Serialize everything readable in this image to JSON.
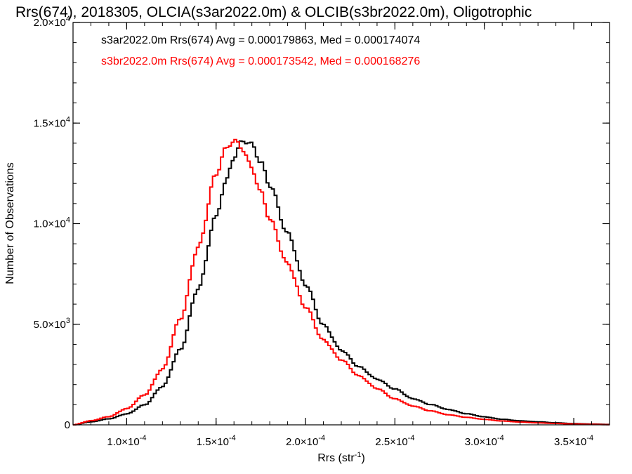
{
  "colors": {
    "series_a": "#000000",
    "series_b": "#ff0000",
    "axis": "#000000",
    "background": "#ffffff"
  },
  "chart_data": {
    "type": "histogram",
    "title": "Rrs(674), 2018305, OLCIA(s3ar2022.0m) & OLCIB(s3br2022.0m), Oligotrophic",
    "xlabel": "Rrs (str⁻¹)",
    "ylabel": "Number of Observations",
    "xlim": [
      7e-05,
      0.00037
    ],
    "ylim": [
      0,
      20000
    ],
    "x_scale": "linear",
    "grid": false,
    "legend_placement": "top-left",
    "x_ticks": [
      {
        "value": 0.0001,
        "label": "1.0×10⁻⁴"
      },
      {
        "value": 0.00015,
        "label": "1.5×10⁻⁴"
      },
      {
        "value": 0.0002,
        "label": "2.0×10⁻⁴"
      },
      {
        "value": 0.00025,
        "label": "2.5×10⁻⁴"
      },
      {
        "value": 0.0003,
        "label": "3.0×10⁻⁴"
      },
      {
        "value": 0.00035,
        "label": "3.5×10⁻⁴"
      }
    ],
    "y_ticks": [
      {
        "value": 0,
        "label": "0"
      },
      {
        "value": 5000,
        "label": "5.0×10³"
      },
      {
        "value": 10000,
        "label": "1.0×10⁴"
      },
      {
        "value": 15000,
        "label": "1.5×10⁴"
      },
      {
        "value": 20000,
        "label": "2.0×10⁴"
      }
    ],
    "series": [
      {
        "name": "s3ar2022.0m Rrs(674) Avg = 0.000179863, Med = 0.000174074",
        "color": "#000000",
        "x": [
          7e-05,
          8e-05,
          9e-05,
          0.0001,
          0.00011,
          0.00012,
          0.00013,
          0.00014,
          0.00015,
          0.000155,
          0.00016,
          0.000165,
          0.00017,
          0.000175,
          0.00018,
          0.00019,
          0.0002,
          0.00021,
          0.00022,
          0.00023,
          0.00024,
          0.00025,
          0.00026,
          0.00027,
          0.00028,
          0.00029,
          0.0003,
          0.00031,
          0.00032,
          0.00033,
          0.00034,
          0.00035,
          0.00036,
          0.00037
        ],
        "y": [
          0,
          150,
          300,
          550,
          1000,
          1900,
          3700,
          6700,
          10300,
          12000,
          13400,
          14300,
          14100,
          13200,
          12000,
          9500,
          6900,
          4900,
          3700,
          2900,
          2300,
          1800,
          1300,
          1000,
          750,
          550,
          400,
          280,
          200,
          150,
          100,
          60,
          40,
          20
        ]
      },
      {
        "name": "s3br2022.0m Rrs(674) Avg = 0.000173542, Med = 0.000168276",
        "color": "#ff0000",
        "x": [
          7e-05,
          8e-05,
          9e-05,
          0.0001,
          0.00011,
          0.00012,
          0.00013,
          0.00014,
          0.00015,
          0.000155,
          0.00016,
          0.000165,
          0.00017,
          0.000175,
          0.00018,
          0.00019,
          0.0002,
          0.00021,
          0.00022,
          0.00023,
          0.00024,
          0.00025,
          0.00026,
          0.00027,
          0.00028,
          0.00029,
          0.0003,
          0.00031,
          0.00032,
          0.00033,
          0.00034,
          0.00035,
          0.00036,
          0.00037
        ],
        "y": [
          0,
          200,
          400,
          800,
          1500,
          2800,
          5300,
          8800,
          12300,
          13500,
          14000,
          13600,
          12700,
          11600,
          10300,
          8100,
          5900,
          4200,
          3200,
          2400,
          1800,
          1300,
          950,
          700,
          500,
          370,
          270,
          190,
          140,
          100,
          70,
          40,
          25,
          10
        ]
      }
    ]
  }
}
